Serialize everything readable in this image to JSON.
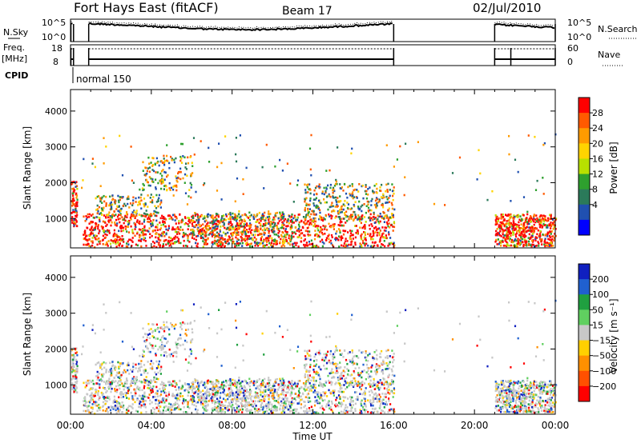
{
  "header": {
    "title": "Fort Hays East (fitACF)",
    "beam": "Beam 17",
    "date": "02/Jul/2010"
  },
  "chart_data": [
    {
      "type": "line",
      "panel": "noise",
      "labels_left": [
        "N.Sky"
      ],
      "labels_right": [
        "N.Search"
      ],
      "left_ticks": [
        "10^5",
        "10^0"
      ],
      "right_ticks": [
        "10^5",
        "10^0"
      ],
      "data_gaps_hours": [
        [
          0.15,
          0.9
        ],
        [
          16.0,
          21.0
        ]
      ]
    },
    {
      "type": "line",
      "panel": "freq-nave",
      "labels_left": [
        "Freq.",
        "[MHz]"
      ],
      "labels_right": [
        "Nave"
      ],
      "left_ticks": [
        "18",
        "8"
      ],
      "right_ticks": [
        "60",
        "0"
      ]
    },
    {
      "type": "table",
      "panel": "cpid",
      "label": "CPID",
      "value": "normal 150"
    },
    {
      "type": "heatmap",
      "panel": "power",
      "xlabel": "",
      "ylabel": "Slant Range [km]",
      "ylim": [
        180,
        4600
      ],
      "y_ticks": [
        "1000",
        "2000",
        "3000",
        "4000"
      ],
      "colorbar": {
        "label": "Power [dB]",
        "ticks": [
          "28",
          "24",
          "20",
          "16",
          "12",
          "8",
          "4"
        ],
        "colors": [
          "#ff0000",
          "#ff5a00",
          "#ff9b00",
          "#ffd400",
          "#b8e000",
          "#2ea02e",
          "#2b7a5a",
          "#2050b0",
          "#0000ff"
        ]
      },
      "echo_regions": [
        {
          "t": [
            0.5,
            16.0
          ],
          "r": [
            200,
            1200
          ],
          "level": "high"
        },
        {
          "t": [
            1.5,
            6.0
          ],
          "r": [
            1000,
            2800
          ],
          "level": "mid"
        },
        {
          "t": [
            11.0,
            16.0
          ],
          "r": [
            1000,
            2200
          ],
          "level": "mid"
        },
        {
          "t": [
            21.0,
            24.0
          ],
          "r": [
            200,
            1200
          ],
          "level": "high"
        }
      ]
    },
    {
      "type": "heatmap",
      "panel": "velocity",
      "xlabel": "Time UT",
      "ylabel": "Slant Range [km]",
      "ylim": [
        180,
        4600
      ],
      "y_ticks": [
        "1000",
        "2000",
        "3000",
        "4000"
      ],
      "x_ticks": [
        "00:00",
        "04:00",
        "08:00",
        "12:00",
        "16:00",
        "20:00",
        "00:00"
      ],
      "xlim_hours": [
        0,
        24
      ],
      "colorbar": {
        "label": "Velocity [m s⁻¹]",
        "ticks": [
          "200",
          "100",
          "50",
          "15",
          "−15",
          "−50",
          "−100",
          "−200"
        ],
        "colors": [
          "#1020c0",
          "#2060d0",
          "#20a040",
          "#60d060",
          "#c8c8c8",
          "#ffd000",
          "#ff9000",
          "#ff5000",
          "#ff0000"
        ]
      }
    }
  ]
}
